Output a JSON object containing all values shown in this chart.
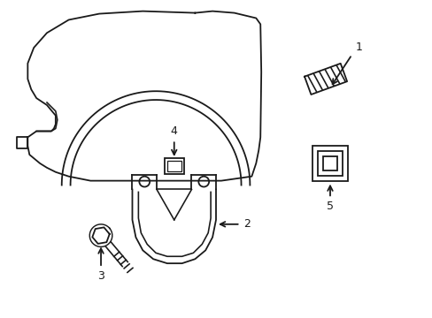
{
  "bg_color": "#ffffff",
  "line_color": "#1a1a1a",
  "line_width": 1.3,
  "fig_width": 4.89,
  "fig_height": 3.6,
  "dpi": 100
}
